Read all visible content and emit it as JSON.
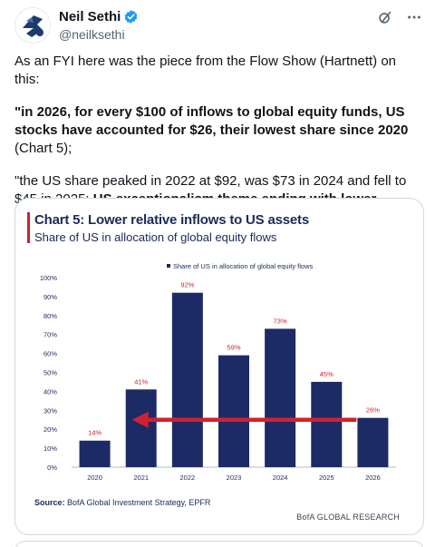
{
  "author": {
    "display_name": "Neil Sethi",
    "handle": "@neilksethi"
  },
  "icons": {
    "avatar": "avatar-logo-icon",
    "verified": "verified-badge-icon",
    "grok": "grok-icon",
    "more": "more-icon"
  },
  "colors": {
    "verified_blue": "#1d9bf0",
    "bar_navy": "#1c2b66",
    "label_red": "#d0202f",
    "arrow_red": "#d3202f"
  },
  "tweet": {
    "line1": "As an FYI here was the piece from the Flow Show (Hartnett) on this:",
    "quote1_bold": "\"in 2026, for every $100 of inflows to global equity funds, US stocks have accounted for $26, their lowest share since 2020",
    "quote1_rest": " (Chart 5);",
    "quote2_start": "\"the US share peaked in 2022 at $92, was $73 in 2024 and fell to $45 in 2025; ",
    "quote2_bold": "US exceptionalism theme ending with lower relative inflows to US assets, not outflows from US assets.",
    "quote2_end": "\""
  },
  "media": {
    "title": "Chart 5: Lower relative inflows to US assets",
    "subtitle": "Share of US in allocation of global equity flows",
    "source_label": "Source:",
    "source_text": " BofA Global Investment Strategy, EPFR",
    "brand": "BofA GLOBAL RESEARCH"
  },
  "chart_data": {
    "type": "bar",
    "title": "Chart 5: Lower relative inflows to US assets",
    "subtitle": "Share of US in allocation of global equity flows",
    "legend": "Share of US in allocation of global equity flows",
    "legend_placement": "top",
    "categories": [
      "2020",
      "2021",
      "2022",
      "2023",
      "2024",
      "2025",
      "2026"
    ],
    "values": [
      14,
      41,
      92,
      59,
      73,
      45,
      26
    ],
    "data_labels": [
      "14%",
      "41%",
      "92%",
      "59%",
      "73%",
      "45%",
      "26%"
    ],
    "y_ticks": [
      "0%",
      "10%",
      "20%",
      "30%",
      "40%",
      "50%",
      "60%",
      "70%",
      "80%",
      "90%",
      "100%"
    ],
    "ylim": [
      0,
      100
    ],
    "grid": false,
    "annotation": "red arrow pointing left from 2026 bar toward 2021 at about 25%"
  }
}
